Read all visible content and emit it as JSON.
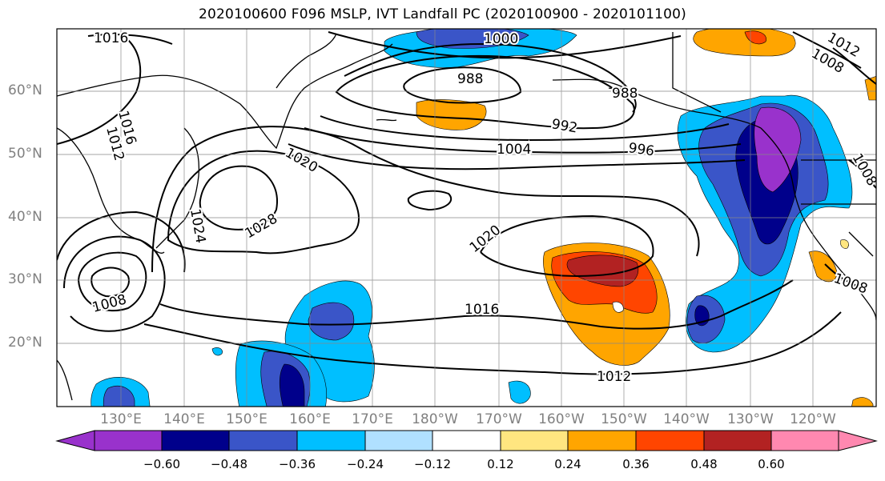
{
  "title": "2020100600 F096 MSLP, IVT Landfall PC (2020100900 - 2020101100)",
  "lat_labels": [
    "60°N",
    "50°N",
    "40°N",
    "30°N",
    "20°N"
  ],
  "lon_labels": [
    "130°E",
    "140°E",
    "150°E",
    "160°E",
    "170°E",
    "180°W",
    "170°W",
    "160°W",
    "150°W",
    "140°W",
    "130°W",
    "120°W"
  ],
  "isobar_labels": [
    "1016",
    "1000",
    "988",
    "988",
    "992",
    "1004",
    "996",
    "1020",
    "1016",
    "1012",
    "1028",
    "1024",
    "1008",
    "1020",
    "1016",
    "1012",
    "1008",
    "1008",
    "1008",
    "1012"
  ],
  "colorbar": {
    "ticks": [
      "−0.60",
      "−0.48",
      "−0.36",
      "−0.24",
      "−0.12",
      "0.12",
      "0.24",
      "0.36",
      "0.48",
      "0.60"
    ],
    "colors": [
      "#9932CC",
      "#00008B",
      "#3A55C8",
      "#00BFFF",
      "#B0E0FF",
      "#FFFFFF",
      "#FFE680",
      "#FFA500",
      "#FF4500",
      "#B22222",
      "#FF88B0"
    ]
  }
}
